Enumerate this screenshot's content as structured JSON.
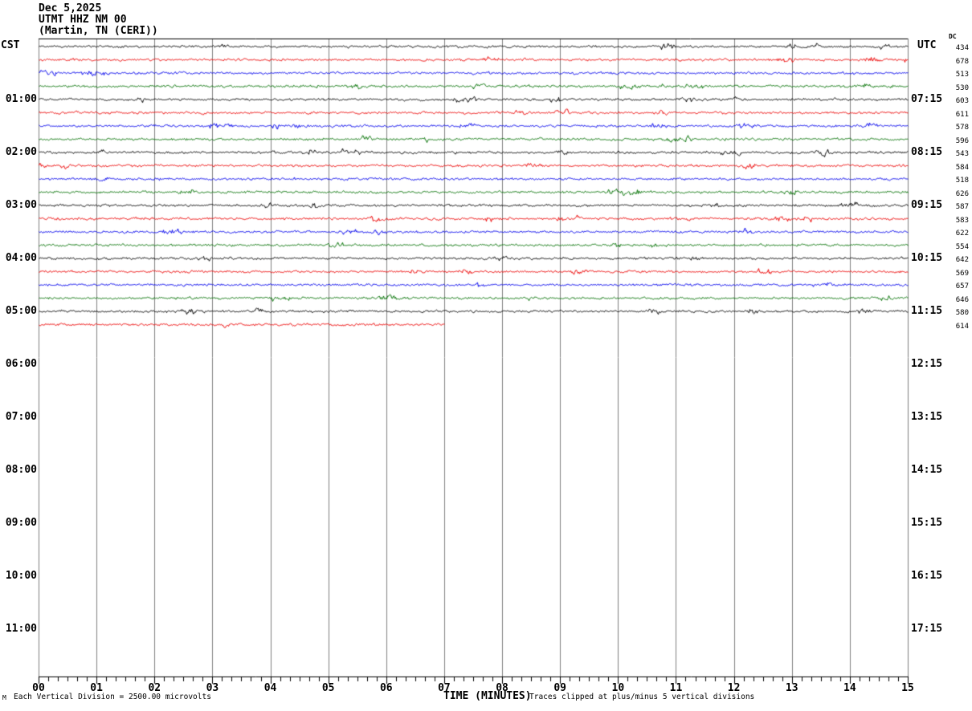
{
  "title": {
    "line1": "Dec 5,2025",
    "line2": "UTMT HHZ NM 00",
    "line3": "(Martin, TN (CERI))"
  },
  "axes": {
    "left": {
      "header": "CST",
      "hours": [
        "01:00",
        "02:00",
        "03:00",
        "04:00",
        "05:00",
        "06:00",
        "07:00",
        "08:00",
        "09:00",
        "10:00",
        "11:00"
      ]
    },
    "right": {
      "header": "UTC",
      "dc_header": "DC",
      "hours": [
        "07:15",
        "08:15",
        "09:15",
        "10:15",
        "11:15",
        "12:15",
        "13:15",
        "14:15",
        "15:15",
        "16:15",
        "17:15"
      ]
    },
    "bottom": {
      "minutes": [
        "00",
        "01",
        "02",
        "03",
        "04",
        "05",
        "06",
        "07",
        "08",
        "09",
        "10",
        "11",
        "12",
        "13",
        "14",
        "15"
      ],
      "label": "TIME (MINUTES)",
      "clip_note": "Traces clipped at plus/minus 5 vertical divisions"
    }
  },
  "footer": {
    "scale_note": "Each Vertical Division = 2500.00 microvolts",
    "corner_mark": "M"
  },
  "colors": {
    "background": "#ffffff",
    "grid": "#808080",
    "axis": "#000000",
    "trace_map": {
      "black": "#000000",
      "red": "#ee0000",
      "blue": "#0000ee",
      "green": "#007000"
    }
  },
  "chart_data": {
    "type": "line",
    "subtype": "helicorder-seismogram",
    "station": "UTMT HHZ NM 00",
    "date": "Dec 5,2025",
    "xlabel": "TIME (MINUTES)",
    "x_range_minutes": [
      0,
      15
    ],
    "rows_per_hour": 4,
    "vertical_division_microvolts": 2500.0,
    "clip_divisions": 5,
    "grid": "vertical-minute-lines",
    "traces": [
      {
        "row": 0,
        "color": "black",
        "dc": 434,
        "start_min": 0,
        "end_min": 15
      },
      {
        "row": 1,
        "color": "red",
        "dc": 678,
        "start_min": 0,
        "end_min": 15
      },
      {
        "row": 2,
        "color": "blue",
        "dc": 513,
        "start_min": 0,
        "end_min": 15
      },
      {
        "row": 3,
        "color": "green",
        "dc": 530,
        "start_min": 0,
        "end_min": 15
      },
      {
        "row": 4,
        "color": "black",
        "dc": 603,
        "start_min": 0,
        "end_min": 15
      },
      {
        "row": 5,
        "color": "red",
        "dc": 611,
        "start_min": 0,
        "end_min": 15
      },
      {
        "row": 6,
        "color": "blue",
        "dc": 578,
        "start_min": 0,
        "end_min": 15
      },
      {
        "row": 7,
        "color": "green",
        "dc": 596,
        "start_min": 0,
        "end_min": 15
      },
      {
        "row": 8,
        "color": "black",
        "dc": 543,
        "start_min": 0,
        "end_min": 15
      },
      {
        "row": 9,
        "color": "red",
        "dc": 584,
        "start_min": 0,
        "end_min": 15
      },
      {
        "row": 10,
        "color": "blue",
        "dc": 518,
        "start_min": 0,
        "end_min": 15
      },
      {
        "row": 11,
        "color": "green",
        "dc": 626,
        "start_min": 0,
        "end_min": 15
      },
      {
        "row": 12,
        "color": "black",
        "dc": 587,
        "start_min": 0,
        "end_min": 15
      },
      {
        "row": 13,
        "color": "red",
        "dc": 583,
        "start_min": 0,
        "end_min": 15
      },
      {
        "row": 14,
        "color": "blue",
        "dc": 622,
        "start_min": 0,
        "end_min": 15
      },
      {
        "row": 15,
        "color": "green",
        "dc": 554,
        "start_min": 0,
        "end_min": 15
      },
      {
        "row": 16,
        "color": "black",
        "dc": 642,
        "start_min": 0,
        "end_min": 15
      },
      {
        "row": 17,
        "color": "red",
        "dc": 569,
        "start_min": 0,
        "end_min": 15
      },
      {
        "row": 18,
        "color": "blue",
        "dc": 657,
        "start_min": 0,
        "end_min": 15
      },
      {
        "row": 19,
        "color": "green",
        "dc": 646,
        "start_min": 0,
        "end_min": 15
      },
      {
        "row": 20,
        "color": "black",
        "dc": 580,
        "start_min": 0,
        "end_min": 15
      },
      {
        "row": 21,
        "color": "red",
        "dc": 614,
        "start_min": 0,
        "end_min": 7
      }
    ]
  }
}
